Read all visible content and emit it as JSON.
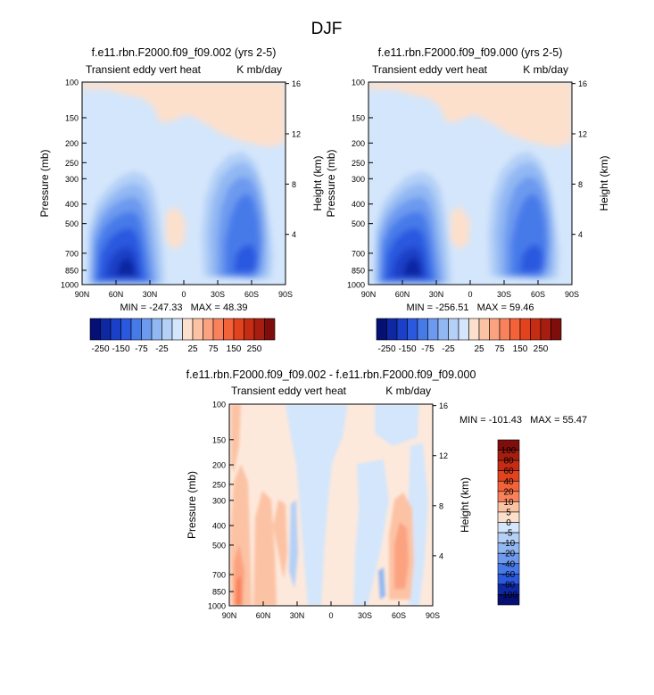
{
  "title": "DJF",
  "colors": {
    "pos": [
      "#fde0cc",
      "#fcc2a4",
      "#fba381",
      "#f9825c",
      "#f36239",
      "#e2431e",
      "#c62c13",
      "#a71d0f",
      "#7e0e0c"
    ],
    "neg": [
      "#d4e6fb",
      "#b4d0f7",
      "#92b8f3",
      "#6d9aef",
      "#477ae9",
      "#2a59df",
      "#1a3fc8",
      "#0e28a3",
      "#060f73"
    ]
  },
  "chart_data": [
    {
      "type": "heatmap",
      "title": "f.e11.rbn.F2000.f09_f09.002 (yrs 2-5)",
      "left_label": "Transient eddy vert heat",
      "right_label": "K mb/day",
      "ylabel": "Pressure (mb)",
      "ylabel_right": "Height (km)",
      "x_ticks": [
        "90N",
        "60N",
        "30N",
        "0",
        "30S",
        "60S",
        "90S"
      ],
      "y_ticks": [
        "100",
        "150",
        "200",
        "250",
        "300",
        "400",
        "500",
        "700",
        "850",
        "1000"
      ],
      "y_right_ticks": [
        "16",
        "12",
        "8",
        "4"
      ],
      "stats": "MIN = -247.33   MAX = 48.39",
      "levels": [
        -250,
        -200,
        -150,
        -100,
        -75,
        -50,
        -25,
        -10,
        0,
        10,
        25,
        50,
        75,
        100,
        150,
        200,
        250
      ],
      "colorbar_labels": [
        "-250",
        "-150",
        "-75",
        "-25",
        "25",
        "75",
        "150",
        "250"
      ],
      "xlim": [
        90,
        -90
      ],
      "ylim": [
        1000,
        100
      ],
      "min": -247.33,
      "max": 48.39
    },
    {
      "type": "heatmap",
      "title": "f.e11.rbn.F2000.f09_f09.000 (yrs 2-5)",
      "left_label": "Transient eddy vert heat",
      "right_label": "K mb/day",
      "ylabel": "Pressure (mb)",
      "ylabel_right": "Height (km)",
      "x_ticks": [
        "90N",
        "60N",
        "30N",
        "0",
        "30S",
        "60S",
        "90S"
      ],
      "y_ticks": [
        "100",
        "150",
        "200",
        "250",
        "300",
        "400",
        "500",
        "700",
        "850",
        "1000"
      ],
      "y_right_ticks": [
        "16",
        "12",
        "8",
        "4"
      ],
      "stats": "MIN = -256.51   MAX = 59.46",
      "levels": [
        -250,
        -200,
        -150,
        -100,
        -75,
        -50,
        -25,
        -10,
        0,
        10,
        25,
        50,
        75,
        100,
        150,
        200,
        250
      ],
      "colorbar_labels": [
        "-250",
        "-150",
        "-75",
        "-25",
        "25",
        "75",
        "150",
        "250"
      ],
      "xlim": [
        90,
        -90
      ],
      "ylim": [
        1000,
        100
      ],
      "min": -256.51,
      "max": 59.46
    },
    {
      "type": "heatmap",
      "title": "f.e11.rbn.F2000.f09_f09.002 - f.e11.rbn.F2000.f09_f09.000",
      "left_label": "Transient eddy vert heat",
      "right_label": "K mb/day",
      "ylabel": "Pressure (mb)",
      "ylabel_right": "Height (km)",
      "x_ticks": [
        "90N",
        "60N",
        "30N",
        "0",
        "30S",
        "60S",
        "90S"
      ],
      "y_ticks": [
        "100",
        "150",
        "200",
        "250",
        "300",
        "400",
        "500",
        "700",
        "850",
        "1000"
      ],
      "y_right_ticks": [
        "16",
        "12",
        "8",
        "4"
      ],
      "stats": "MIN = -101.43   MAX = 55.47",
      "levels": [
        -100,
        -80,
        -60,
        -40,
        -20,
        -10,
        -5,
        0,
        5,
        10,
        20,
        40,
        60,
        80,
        100
      ],
      "colorbar_labels": [
        "100",
        "80",
        "60",
        "40",
        "20",
        "10",
        "5",
        "0",
        "-5",
        "-10",
        "-20",
        "-40",
        "-60",
        "-80",
        "-100"
      ],
      "xlim": [
        90,
        -90
      ],
      "ylim": [
        1000,
        100
      ],
      "min": -101.43,
      "max": 55.47
    }
  ]
}
